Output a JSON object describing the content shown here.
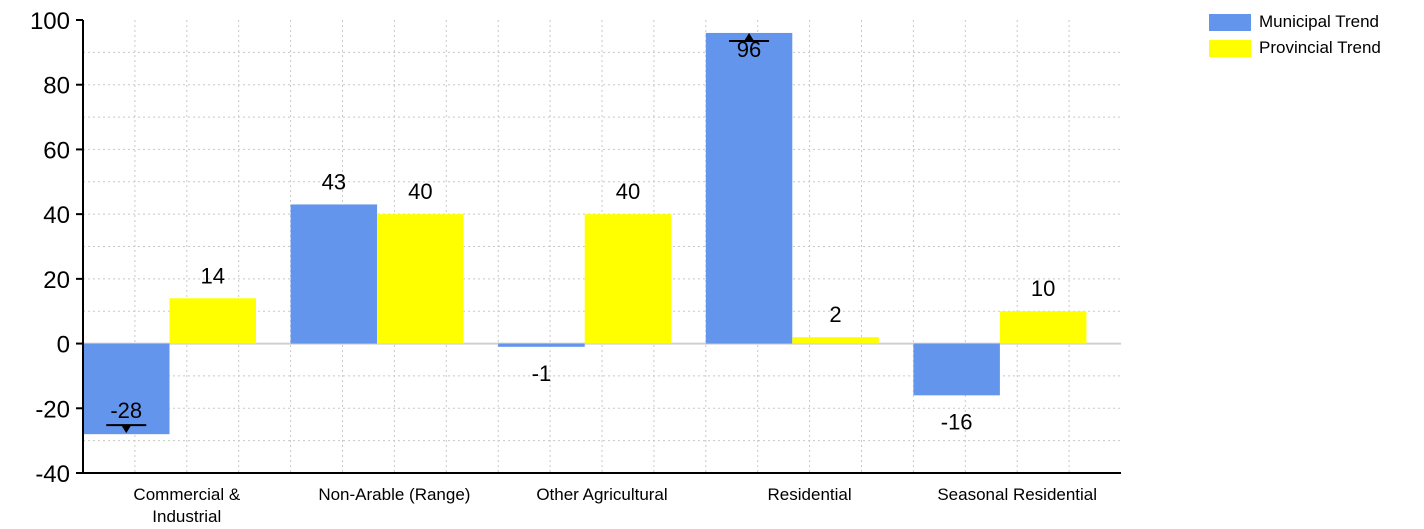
{
  "chart_data": {
    "type": "bar",
    "categories": [
      "Commercial &\nIndustrial",
      "Non-Arable (Range)",
      "Other Agricultural",
      "Residential",
      "Seasonal Residential"
    ],
    "series": [
      {
        "name": "Municipal Trend",
        "color": "#6495ED",
        "values": [
          -28,
          43,
          -1,
          96,
          -16
        ]
      },
      {
        "name": "Provincial Trend",
        "color": "#FFFF00",
        "values": [
          14,
          40,
          40,
          2,
          10
        ]
      }
    ],
    "ylim": [
      -40,
      100
    ],
    "yticks": [
      100,
      80,
      60,
      40,
      20,
      0,
      -20,
      -40
    ],
    "title": "",
    "xlabel": "",
    "ylabel": "",
    "grid": true,
    "legend_position": "top-right",
    "markers": [
      {
        "series": 0,
        "category": 0,
        "symbol": "down-triangle"
      },
      {
        "series": 0,
        "category": 3,
        "symbol": "up-triangle"
      }
    ]
  }
}
